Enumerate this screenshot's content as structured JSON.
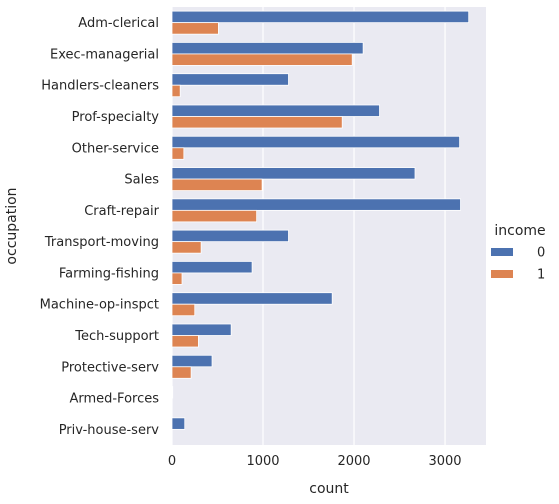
{
  "chart_data": {
    "type": "bar",
    "orientation": "horizontal",
    "xlabel": "count",
    "ylabel": "occupation",
    "xlim": [
      0,
      3450
    ],
    "xticks": [
      0,
      1000,
      2000,
      3000
    ],
    "grid": true,
    "legend_position": "right",
    "legend_title": "income",
    "categories": [
      "Adm-clerical",
      "Exec-managerial",
      "Handlers-cleaners",
      "Prof-specialty",
      "Other-service",
      "Sales",
      "Craft-repair",
      "Transport-moving",
      "Farming-fishing",
      "Machine-op-inspct",
      "Tech-support",
      "Protective-serv",
      "Armed-Forces",
      "Priv-house-serv"
    ],
    "series": [
      {
        "name": "0",
        "color": "#4c72b0",
        "values": [
          3260,
          2100,
          1280,
          2280,
          3160,
          2670,
          3170,
          1280,
          880,
          1760,
          650,
          440,
          8,
          140
        ]
      },
      {
        "name": "1",
        "color": "#dd8452",
        "values": [
          510,
          1980,
          90,
          1870,
          130,
          990,
          930,
          320,
          110,
          250,
          290,
          210,
          1,
          1
        ]
      }
    ]
  }
}
